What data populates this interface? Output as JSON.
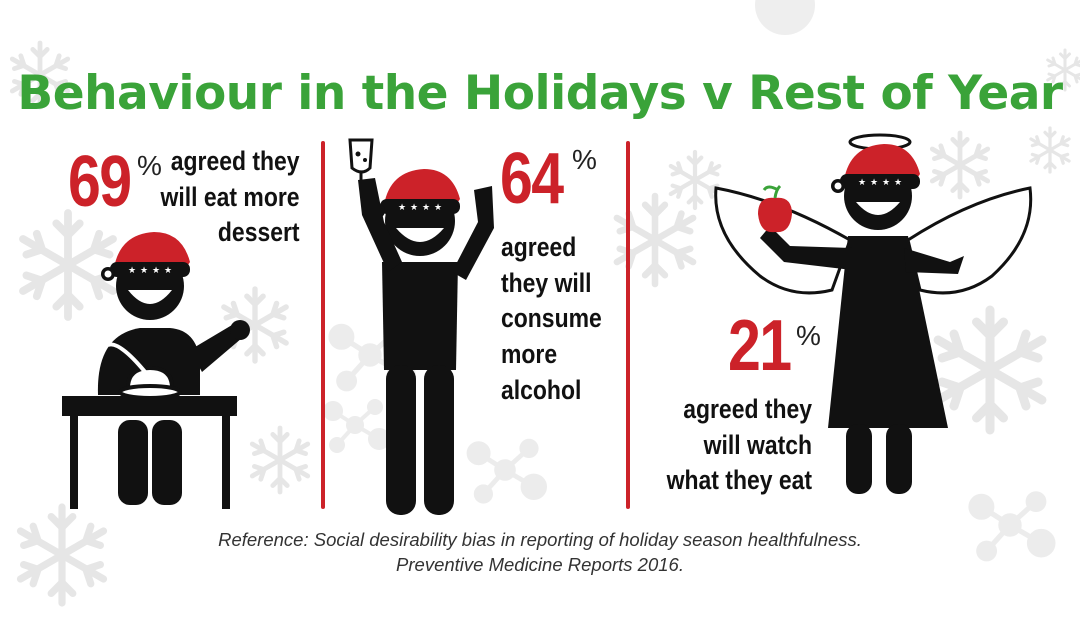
{
  "title": "Behaviour in the Holidays v Rest of Year",
  "stats": [
    {
      "value": "69",
      "unit": "%",
      "text": "agreed they\nwill eat more\ndessert"
    },
    {
      "value": "64",
      "unit": "%",
      "text": "agreed\nthey will\nconsume\nmore\nalcohol"
    },
    {
      "value": "21",
      "unit": "%",
      "text": "agreed they\nwill watch\nwhat they eat"
    }
  ],
  "reference": {
    "line1": "Reference: Social desirability bias in reporting of holiday season healthfulness.",
    "line2": "Preventive Medicine Reports 2016."
  },
  "colors": {
    "title": "#3aa339",
    "accent": "#cc2229",
    "figure": "#111111",
    "snowflake": "#e9e9e9"
  },
  "icons": [
    "snowflake-icon",
    "santa-hat-icon",
    "wine-glass-icon",
    "apple-icon",
    "angel-wings-icon",
    "halo-icon",
    "pudding-bowl-icon"
  ]
}
